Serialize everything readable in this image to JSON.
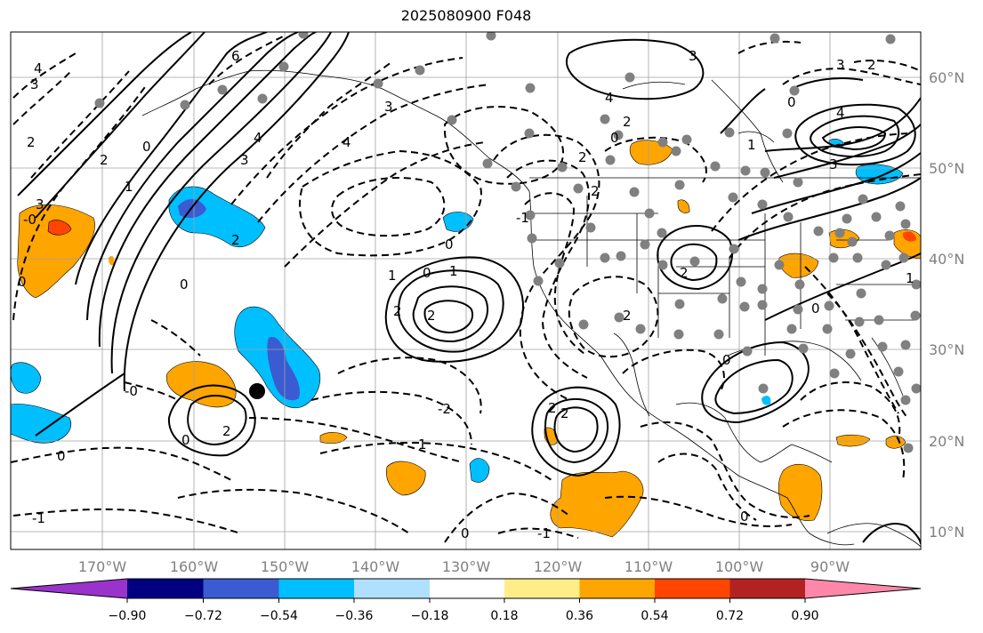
{
  "title": "2025080900 F048",
  "map": {
    "lon_labels": [
      "170°W",
      "160°W",
      "150°W",
      "140°W",
      "130°W",
      "120°W",
      "110°W",
      "100°W",
      "90°W"
    ],
    "lat_labels": [
      "60°N",
      "50°N",
      "40°N",
      "30°N",
      "20°N",
      "10°N"
    ],
    "contour_labels": [
      "4",
      "3",
      "2",
      "6",
      "4",
      "3",
      "2",
      "1",
      "0",
      "3",
      "4",
      "3",
      "2",
      "1",
      "0",
      "-0",
      "2",
      "0",
      "1",
      "2",
      "2",
      "0",
      "-1",
      "1",
      "-2",
      "3",
      "4",
      "2",
      "0",
      "2",
      "3",
      "2",
      "4",
      "3",
      "0",
      "2",
      "1",
      "2",
      "2",
      "0",
      "0",
      "2",
      "2",
      "0",
      "1",
      "-1",
      "0",
      "-1",
      "-0",
      "0",
      "0",
      "0"
    ]
  },
  "colorbar": {
    "colors": [
      "#9933cc",
      "#000080",
      "#3a5bd1",
      "#00bfff",
      "#b0e0ff",
      "#ffffff",
      "#ffee88",
      "#ffa500",
      "#ff4500",
      "#b22222",
      "#ff88aa"
    ],
    "ticks": [
      "−0.90",
      "−0.72",
      "−0.54",
      "−0.36",
      "−0.18",
      "0.18",
      "0.36",
      "0.54",
      "0.72",
      "0.90"
    ]
  }
}
